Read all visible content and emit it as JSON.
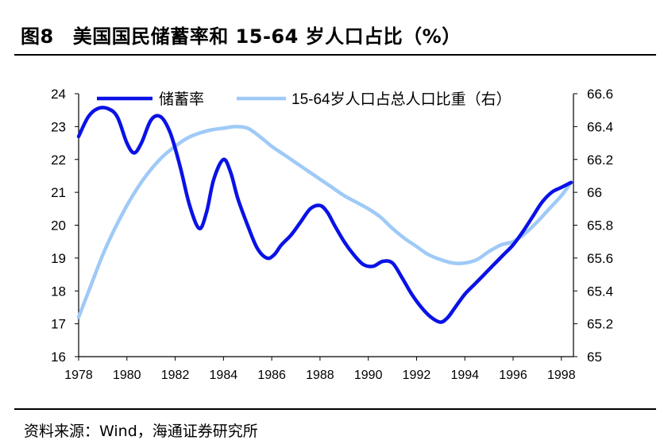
{
  "figure": {
    "label": "图8",
    "title": "美国国民储蓄率和 15-64 岁人口占比（%）",
    "source": "资料来源：Wind，海通证券研究所"
  },
  "colors": {
    "savings": "#0a12e6",
    "population": "#9fcaf7",
    "axis": "#000000"
  },
  "chart_data": {
    "type": "line",
    "title": "美国国民储蓄率和 15-64 岁人口占比（%）",
    "xlim": [
      1978,
      1998.5
    ],
    "x_ticks": [
      1978,
      1980,
      1982,
      1984,
      1986,
      1988,
      1990,
      1992,
      1994,
      1996,
      1998
    ],
    "y_left": {
      "lim": [
        16,
        24
      ],
      "ticks": [
        16,
        17,
        18,
        19,
        20,
        21,
        22,
        23,
        24
      ]
    },
    "y_right": {
      "lim": [
        65,
        66.6
      ],
      "ticks": [
        "65",
        "65.2",
        "65.4",
        "65.6",
        "65.8",
        "66",
        "66.2",
        "66.4",
        "66.6"
      ]
    },
    "legend_position": "top",
    "series": [
      {
        "name": "储蓄率",
        "axis": "left",
        "x": [
          1978,
          1978.4,
          1978.8,
          1979.2,
          1979.6,
          1980,
          1980.3,
          1980.6,
          1981,
          1981.4,
          1981.8,
          1982.2,
          1982.6,
          1983,
          1983.3,
          1983.6,
          1984,
          1984.3,
          1984.6,
          1985,
          1985.4,
          1985.8,
          1986.1,
          1986.4,
          1986.8,
          1987.2,
          1987.6,
          1988,
          1988.3,
          1988.6,
          1989,
          1989.4,
          1989.8,
          1990.2,
          1990.6,
          1991,
          1991.4,
          1991.8,
          1992.2,
          1992.6,
          1993,
          1993.3,
          1993.6,
          1994,
          1994.4,
          1994.8,
          1995.2,
          1995.6,
          1996,
          1996.4,
          1996.8,
          1997.2,
          1997.6,
          1998,
          1998.4
        ],
        "values": [
          22.7,
          23.3,
          23.55,
          23.55,
          23.3,
          22.5,
          22.2,
          22.5,
          23.2,
          23.3,
          22.8,
          21.8,
          20.6,
          19.9,
          20.4,
          21.4,
          22.0,
          21.6,
          20.8,
          20.0,
          19.3,
          19.0,
          19.1,
          19.4,
          19.7,
          20.1,
          20.5,
          20.6,
          20.4,
          20.0,
          19.5,
          19.1,
          18.8,
          18.75,
          18.9,
          18.85,
          18.4,
          17.9,
          17.5,
          17.2,
          17.05,
          17.2,
          17.5,
          17.9,
          18.2,
          18.5,
          18.8,
          19.1,
          19.4,
          19.8,
          20.25,
          20.7,
          21.0,
          21.15,
          21.3
        ]
      },
      {
        "name": "15-64岁人口占总人口比重（右）",
        "axis": "right",
        "x": [
          1978,
          1978.5,
          1979,
          1979.5,
          1980,
          1980.5,
          1981,
          1981.5,
          1982,
          1982.5,
          1983,
          1983.5,
          1984,
          1984.5,
          1985,
          1985.5,
          1986,
          1986.5,
          1987,
          1987.5,
          1988,
          1988.5,
          1989,
          1989.5,
          1990,
          1990.5,
          1991,
          1991.5,
          1992,
          1992.5,
          1993,
          1993.5,
          1994,
          1994.5,
          1995,
          1995.5,
          1996,
          1996.5,
          1997,
          1997.5,
          1998,
          1998.4
        ],
        "values": [
          65.24,
          65.43,
          65.62,
          65.78,
          65.92,
          66.04,
          66.14,
          66.22,
          66.28,
          66.33,
          66.36,
          66.38,
          66.39,
          66.4,
          66.39,
          66.34,
          66.28,
          66.23,
          66.18,
          66.13,
          66.08,
          66.03,
          65.98,
          65.94,
          65.9,
          65.85,
          65.78,
          65.72,
          65.67,
          65.62,
          65.59,
          65.57,
          65.57,
          65.59,
          65.64,
          65.68,
          65.7,
          65.75,
          65.82,
          65.9,
          65.98,
          66.06
        ]
      }
    ]
  }
}
